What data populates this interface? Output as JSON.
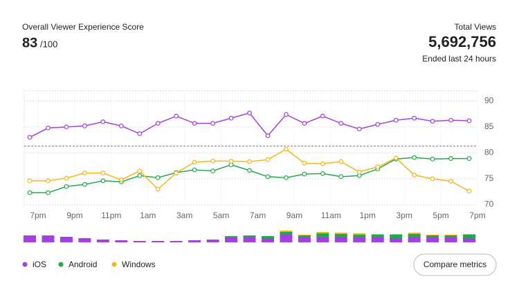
{
  "header": {
    "title": "Overall Viewer Experience Score",
    "score": "83",
    "score_suffix": "/100",
    "total_label": "Total Views",
    "total_value": "5,692,756",
    "subtitle": "Ended last 24 hours"
  },
  "chart_data": {
    "type": "line",
    "categories": [
      "7pm",
      null,
      "9pm",
      null,
      "11pm",
      null,
      "1am",
      null,
      "3am",
      null,
      "5am",
      null,
      "7am",
      null,
      "9am",
      null,
      "11am",
      null,
      "1pm",
      null,
      "3pm",
      null,
      "5pm",
      null,
      "7pm"
    ],
    "series": [
      {
        "name": "iOS",
        "color": "#a43fe0",
        "values": [
          83.0,
          84.8,
          85.0,
          85.2,
          86.0,
          85.2,
          83.7,
          85.7,
          87.1,
          85.7,
          85.7,
          86.7,
          87.7,
          83.3,
          87.4,
          85.7,
          87.1,
          85.7,
          84.6,
          85.5,
          86.3,
          86.7,
          86.1,
          86.3,
          86.2
        ]
      },
      {
        "name": "Android",
        "color": "#1faa4a",
        "values": [
          72.3,
          72.3,
          73.5,
          73.9,
          74.6,
          74.4,
          75.6,
          75.2,
          76.2,
          76.7,
          76.5,
          77.7,
          76.6,
          75.4,
          75.2,
          75.9,
          76.0,
          75.4,
          75.6,
          76.9,
          78.8,
          79.1,
          78.8,
          78.9,
          78.9
        ]
      },
      {
        "name": "Windows",
        "color": "#f5b515",
        "values": [
          74.6,
          74.6,
          75.1,
          76.1,
          76.1,
          74.8,
          76.5,
          73.0,
          76.1,
          78.2,
          78.4,
          78.4,
          78.3,
          78.7,
          80.7,
          78.0,
          77.9,
          78.3,
          76.3,
          77.3,
          79.0,
          75.7,
          75.0,
          74.5,
          72.6
        ]
      }
    ],
    "ylim": [
      68,
      92
    ],
    "yticks": [
      70,
      75,
      80,
      85,
      90
    ],
    "grid": true,
    "reference_line": 81.3,
    "volume": [
      [
        9,
        9,
        7,
        5,
        4,
        3,
        2,
        2,
        2,
        3,
        3,
        7,
        7,
        6,
        11,
        7,
        7,
        7,
        7,
        7,
        6,
        7,
        7,
        7,
        6
      ],
      [
        1,
        1,
        1,
        1,
        0,
        0,
        0,
        0,
        0,
        0,
        1,
        2,
        3,
        3,
        4,
        3,
        6,
        5,
        4,
        4,
        5,
        5,
        3,
        3,
        5
      ],
      [
        0,
        0,
        0,
        0,
        0,
        0,
        0,
        0,
        0,
        0,
        0,
        0,
        0,
        0,
        2,
        1,
        2,
        2,
        2,
        1,
        1,
        2,
        1,
        1,
        1
      ]
    ]
  },
  "button": "Compare metrics"
}
